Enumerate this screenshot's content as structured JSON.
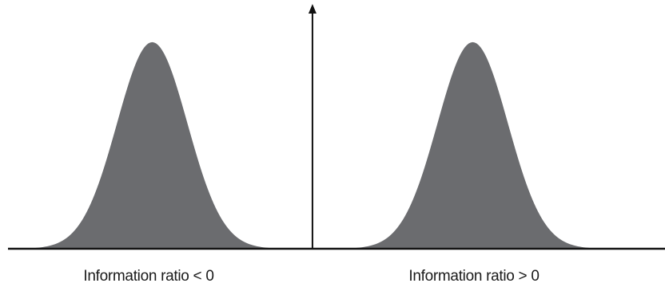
{
  "chart_data": {
    "type": "area",
    "title": "",
    "xlabel": "",
    "ylabel": "",
    "grid": false,
    "series": [
      {
        "label": "Information ratio < 0",
        "center": -1,
        "spread": 0.22,
        "peak": 1.0
      },
      {
        "label": "Information ratio > 0",
        "center": 1,
        "spread": 0.22,
        "peak": 1.0
      }
    ],
    "xlim": [
      -1.9,
      2.2
    ],
    "ylim": [
      0,
      1.1
    ],
    "vertical_axis_at": 0,
    "colors": {
      "fill": "#6b6c6f",
      "axis": "#111111"
    }
  }
}
